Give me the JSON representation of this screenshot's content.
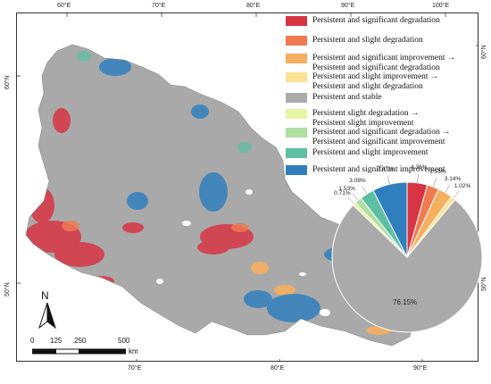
{
  "map": {
    "graticule": {
      "top": [
        "60°E",
        "70°E",
        "80°E",
        "90°E",
        "100°E"
      ],
      "bottom": [
        "70°E",
        "80°E",
        "90°E"
      ],
      "left": [
        "60°N",
        "50°N"
      ],
      "right": [
        "60°N",
        "50°N"
      ]
    },
    "north_arrow_label": "N",
    "scale_bar": {
      "ticks": [
        "0",
        "125",
        "250",
        "500"
      ],
      "unit": "km"
    }
  },
  "legend": [
    {
      "label": "Persistent and significant degradation",
      "color": "#d73544"
    },
    {
      "label": "Persistent and slight degradation",
      "color": "#f07a52"
    },
    {
      "label": "Persistent and significant improvement →\nPersistent and significant degradation",
      "color": "#f6ae5f"
    },
    {
      "label": "Persistent and slight improvement →\nPersistent and slight degradation",
      "color": "#fde294"
    },
    {
      "label": "Persistent and stable",
      "color": "#aaaaaa"
    },
    {
      "label": "Persistent slight degradation →\nPersistent slight improvement",
      "color": "#e6f5a0"
    },
    {
      "label": "Persistent and significant degradation →\nPersistent and significant improvement",
      "color": "#acdfa0"
    },
    {
      "label": "Persistent and slight improvement",
      "color": "#5fbfa4"
    },
    {
      "label": "Persistent and significant improvement",
      "color": "#2f7fbf"
    }
  ],
  "chart_data": {
    "type": "pie",
    "title": "",
    "slices": [
      {
        "label": "4.36%",
        "value": 4.36,
        "color": "#d73544"
      },
      {
        "label": "2.55%",
        "value": 2.55,
        "color": "#f07a52"
      },
      {
        "label": "3.14%",
        "value": 3.14,
        "color": "#f6ae5f"
      },
      {
        "label": "1.02%",
        "value": 1.02,
        "color": "#fde294"
      },
      {
        "label": "76.15%",
        "value": 76.15,
        "color": "#aaaaaa"
      },
      {
        "label": "0.71%",
        "value": 0.71,
        "color": "#e6f5a0"
      },
      {
        "label": "1.53%",
        "value": 1.53,
        "color": "#acdfa0"
      },
      {
        "label": "3.08%",
        "value": 3.08,
        "color": "#5fbfa4"
      },
      {
        "label": "7.47%",
        "value": 7.47,
        "color": "#2f7fbf"
      }
    ]
  }
}
